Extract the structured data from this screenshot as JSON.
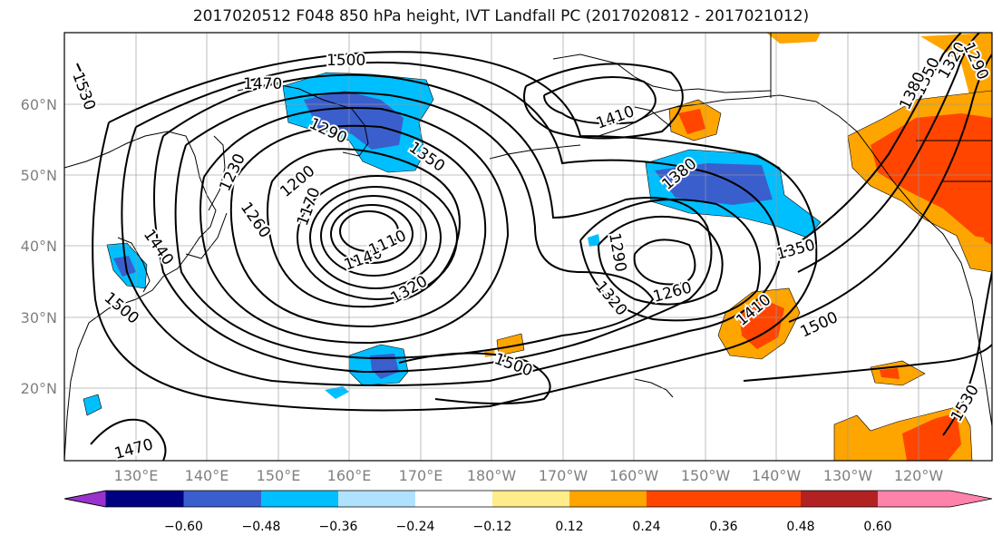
{
  "title": "2017020512 F048 850 hPa height, IVT Landfall PC (2017020812 - 2017021012)",
  "lat_labels": [
    "60°N",
    "50°N",
    "40°N",
    "30°N",
    "20°N"
  ],
  "lon_labels": [
    "130°E",
    "140°E",
    "150°E",
    "160°E",
    "170°E",
    "180°W",
    "170°W",
    "160°W",
    "150°W",
    "140°W",
    "130°W",
    "120°W"
  ],
  "colorbar": {
    "ticks": [
      "−0.60",
      "−0.48",
      "−0.36",
      "−0.24",
      "−0.12",
      "0.12",
      "0.24",
      "0.36",
      "0.48",
      "0.60"
    ],
    "colors": [
      "#9932cc",
      "#000080",
      "#3a5fcd",
      "#00bfff",
      "#b0e2ff",
      "#ffffff",
      "#ffec8b",
      "#ffa500",
      "#ff4500",
      "#b22222",
      "#ff82ab"
    ]
  },
  "contour_labels": [
    {
      "text": "1500"
    },
    {
      "text": "1470"
    },
    {
      "text": "1530"
    },
    {
      "text": "1290"
    },
    {
      "text": "1350"
    },
    {
      "text": "1230"
    },
    {
      "text": "1200"
    },
    {
      "text": "1260"
    },
    {
      "text": "1170"
    },
    {
      "text": "1140"
    },
    {
      "text": "1110"
    },
    {
      "text": "1320"
    },
    {
      "text": "1440"
    },
    {
      "text": "1500"
    },
    {
      "text": "1410"
    },
    {
      "text": "1380"
    },
    {
      "text": "1290"
    },
    {
      "text": "1320"
    },
    {
      "text": "1260"
    },
    {
      "text": "1350"
    },
    {
      "text": "1410"
    },
    {
      "text": "1500"
    },
    {
      "text": "1500"
    },
    {
      "text": "1530"
    },
    {
      "text": "1470"
    },
    {
      "text": "1320"
    },
    {
      "text": "1350"
    },
    {
      "text": "1380"
    },
    {
      "text": "1290"
    }
  ]
}
